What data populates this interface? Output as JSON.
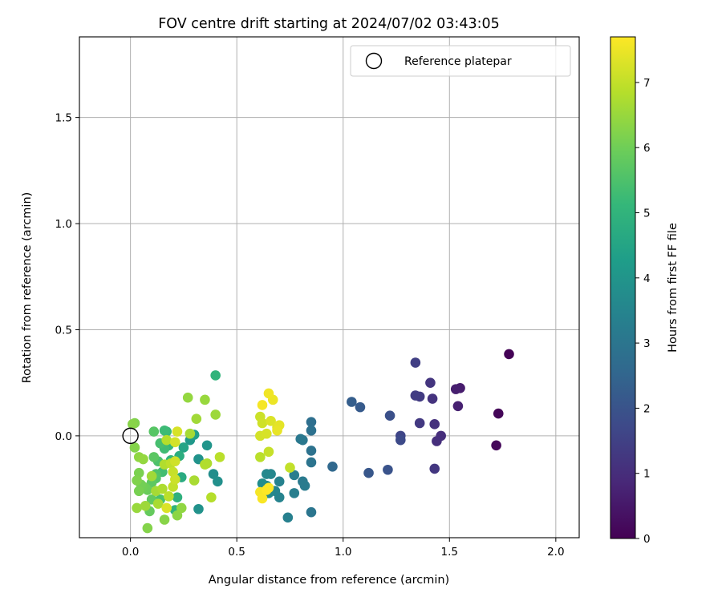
{
  "chart_data": {
    "type": "scatter",
    "title": "FOV centre drift starting at 2024/07/02 03:43:05",
    "xlabel": "Angular distance from reference (arcmin)",
    "ylabel": "Rotation from reference (arcmin)",
    "xlim": [
      -0.24,
      2.11
    ],
    "ylim": [
      -0.48,
      1.88
    ],
    "x_ticks": [
      "0.0",
      "0.5",
      "1.0",
      "1.5",
      "2.0"
    ],
    "y_ticks": [
      "0.0",
      "0.5",
      "1.0",
      "1.5"
    ],
    "grid": true,
    "legend": {
      "position": "top-right",
      "entries": [
        "Reference platepar"
      ]
    },
    "reference_point": {
      "x": 0.0,
      "y": 0.0,
      "label": "Reference platepar"
    },
    "colorbar": {
      "label": "Hours from first FF file",
      "range": [
        0,
        7.7
      ],
      "ticks": [
        "0",
        "1",
        "2",
        "3",
        "4",
        "5",
        "6",
        "7"
      ],
      "colormap": [
        "#440154",
        "#482878",
        "#3e4989",
        "#31688e",
        "#26828e",
        "#1f9e89",
        "#35b779",
        "#6ece58",
        "#b5de2b",
        "#fde725"
      ]
    },
    "points": [
      {
        "x": 1.78,
        "y": 0.385,
        "h": 0.05
      },
      {
        "x": 1.73,
        "y": 0.105,
        "h": 0.1
      },
      {
        "x": 1.72,
        "y": -0.045,
        "h": 0.15
      },
      {
        "x": 1.55,
        "y": 0.225,
        "h": 0.6
      },
      {
        "x": 1.53,
        "y": 0.22,
        "h": 0.65
      },
      {
        "x": 1.54,
        "y": 0.14,
        "h": 0.7
      },
      {
        "x": 1.46,
        "y": 0.0,
        "h": 1.0
      },
      {
        "x": 1.44,
        "y": -0.025,
        "h": 1.05
      },
      {
        "x": 1.43,
        "y": 0.055,
        "h": 1.1
      },
      {
        "x": 1.42,
        "y": 0.175,
        "h": 1.15
      },
      {
        "x": 1.41,
        "y": 0.25,
        "h": 1.2
      },
      {
        "x": 1.43,
        "y": -0.155,
        "h": 1.25
      },
      {
        "x": 1.36,
        "y": 0.06,
        "h": 1.3
      },
      {
        "x": 1.36,
        "y": 0.185,
        "h": 1.35
      },
      {
        "x": 1.34,
        "y": 0.19,
        "h": 1.4
      },
      {
        "x": 1.34,
        "y": 0.345,
        "h": 1.45
      },
      {
        "x": 1.27,
        "y": 0.0,
        "h": 1.6
      },
      {
        "x": 1.27,
        "y": -0.02,
        "h": 1.75
      },
      {
        "x": 1.22,
        "y": 0.095,
        "h": 1.9
      },
      {
        "x": 1.21,
        "y": -0.16,
        "h": 2.0
      },
      {
        "x": 1.12,
        "y": -0.175,
        "h": 2.1
      },
      {
        "x": 1.08,
        "y": 0.135,
        "h": 2.2
      },
      {
        "x": 1.04,
        "y": 0.16,
        "h": 2.3
      },
      {
        "x": 0.95,
        "y": -0.145,
        "h": 2.6
      },
      {
        "x": 0.85,
        "y": 0.065,
        "h": 2.8
      },
      {
        "x": 0.85,
        "y": 0.025,
        "h": 2.85
      },
      {
        "x": 0.85,
        "y": -0.07,
        "h": 2.9
      },
      {
        "x": 0.85,
        "y": -0.125,
        "h": 2.95
      },
      {
        "x": 0.85,
        "y": -0.36,
        "h": 3.0
      },
      {
        "x": 0.81,
        "y": -0.02,
        "h": 3.05
      },
      {
        "x": 0.8,
        "y": -0.015,
        "h": 3.1
      },
      {
        "x": 0.81,
        "y": -0.215,
        "h": 3.15
      },
      {
        "x": 0.82,
        "y": -0.235,
        "h": 3.2
      },
      {
        "x": 0.77,
        "y": -0.185,
        "h": 3.25
      },
      {
        "x": 0.77,
        "y": -0.27,
        "h": 3.3
      },
      {
        "x": 0.74,
        "y": -0.385,
        "h": 3.35
      },
      {
        "x": 0.7,
        "y": -0.215,
        "h": 3.4
      },
      {
        "x": 0.7,
        "y": -0.29,
        "h": 3.45
      },
      {
        "x": 0.68,
        "y": -0.26,
        "h": 3.5
      },
      {
        "x": 0.66,
        "y": -0.18,
        "h": 3.55
      },
      {
        "x": 0.64,
        "y": -0.18,
        "h": 3.6
      },
      {
        "x": 0.65,
        "y": -0.27,
        "h": 3.65
      },
      {
        "x": 0.64,
        "y": -0.235,
        "h": 3.7
      },
      {
        "x": 0.62,
        "y": -0.225,
        "h": 3.75
      },
      {
        "x": 0.4,
        "y": 0.285,
        "h": 5.0
      },
      {
        "x": 0.39,
        "y": -0.18,
        "h": 3.8
      },
      {
        "x": 0.41,
        "y": -0.215,
        "h": 3.85
      },
      {
        "x": 0.32,
        "y": -0.345,
        "h": 3.9
      },
      {
        "x": 0.32,
        "y": -0.11,
        "h": 3.95
      },
      {
        "x": 0.36,
        "y": -0.045,
        "h": 4.0
      },
      {
        "x": 0.28,
        "y": -0.02,
        "h": 4.1
      },
      {
        "x": 0.3,
        "y": 0.005,
        "h": 4.3
      },
      {
        "x": 0.25,
        "y": -0.055,
        "h": 4.5
      },
      {
        "x": 0.24,
        "y": -0.195,
        "h": 4.7
      },
      {
        "x": 0.23,
        "y": -0.095,
        "h": 4.8
      },
      {
        "x": 0.22,
        "y": -0.29,
        "h": 4.9
      },
      {
        "x": 0.21,
        "y": -0.35,
        "h": 5.0
      },
      {
        "x": 0.19,
        "y": -0.115,
        "h": 5.05
      },
      {
        "x": 0.18,
        "y": -0.045,
        "h": 5.1
      },
      {
        "x": 0.17,
        "y": 0.02,
        "h": 5.2
      },
      {
        "x": 0.16,
        "y": 0.025,
        "h": 5.25
      },
      {
        "x": 0.16,
        "y": -0.06,
        "h": 5.3
      },
      {
        "x": 0.15,
        "y": -0.17,
        "h": 5.35
      },
      {
        "x": 0.14,
        "y": -0.035,
        "h": 5.4
      },
      {
        "x": 0.14,
        "y": -0.3,
        "h": 5.45
      },
      {
        "x": 0.13,
        "y": -0.12,
        "h": 5.5
      },
      {
        "x": 0.12,
        "y": -0.18,
        "h": 5.55
      },
      {
        "x": 0.12,
        "y": -0.2,
        "h": 5.6
      },
      {
        "x": 0.11,
        "y": 0.02,
        "h": 5.65
      },
      {
        "x": 0.11,
        "y": -0.1,
        "h": 5.7
      },
      {
        "x": 0.1,
        "y": -0.22,
        "h": 5.75
      },
      {
        "x": 0.1,
        "y": -0.3,
        "h": 5.8
      },
      {
        "x": 0.09,
        "y": -0.355,
        "h": 5.85
      },
      {
        "x": 0.08,
        "y": -0.255,
        "h": 5.9
      },
      {
        "x": 0.07,
        "y": -0.245,
        "h": 5.95
      },
      {
        "x": 0.06,
        "y": -0.24,
        "h": 6.0
      },
      {
        "x": 0.05,
        "y": -0.23,
        "h": 6.05
      },
      {
        "x": 0.04,
        "y": -0.26,
        "h": 6.1
      },
      {
        "x": 0.04,
        "y": -0.175,
        "h": 6.15
      },
      {
        "x": 0.03,
        "y": -0.21,
        "h": 6.2
      },
      {
        "x": 0.08,
        "y": -0.435,
        "h": 6.25
      },
      {
        "x": 0.16,
        "y": -0.395,
        "h": 6.3
      },
      {
        "x": 0.22,
        "y": -0.375,
        "h": 6.35
      },
      {
        "x": 0.24,
        "y": -0.34,
        "h": 6.4
      },
      {
        "x": 0.27,
        "y": 0.18,
        "h": 6.45
      },
      {
        "x": 0.35,
        "y": 0.17,
        "h": 6.5
      },
      {
        "x": 0.4,
        "y": 0.1,
        "h": 6.55
      },
      {
        "x": 0.31,
        "y": 0.08,
        "h": 6.6
      },
      {
        "x": 0.28,
        "y": 0.01,
        "h": 6.65
      },
      {
        "x": 0.3,
        "y": -0.21,
        "h": 6.7
      },
      {
        "x": 0.36,
        "y": -0.13,
        "h": 6.75
      },
      {
        "x": 0.35,
        "y": -0.135,
        "h": 6.8
      },
      {
        "x": 0.38,
        "y": -0.29,
        "h": 6.85
      },
      {
        "x": 0.42,
        "y": -0.1,
        "h": 6.9
      },
      {
        "x": 0.02,
        "y": 0.06,
        "h": 6.2
      },
      {
        "x": 0.01,
        "y": 0.055,
        "h": 6.3
      },
      {
        "x": 0.02,
        "y": -0.055,
        "h": 6.25
      },
      {
        "x": 0.04,
        "y": -0.1,
        "h": 6.4
      },
      {
        "x": 0.06,
        "y": -0.11,
        "h": 6.45
      },
      {
        "x": 0.03,
        "y": -0.34,
        "h": 6.5
      },
      {
        "x": 0.07,
        "y": -0.33,
        "h": 6.55
      },
      {
        "x": 0.1,
        "y": -0.19,
        "h": 6.6
      },
      {
        "x": 0.12,
        "y": -0.26,
        "h": 6.65
      },
      {
        "x": 0.13,
        "y": -0.32,
        "h": 6.7
      },
      {
        "x": 0.15,
        "y": -0.25,
        "h": 6.75
      },
      {
        "x": 0.16,
        "y": -0.135,
        "h": 6.8
      },
      {
        "x": 0.17,
        "y": -0.02,
        "h": 6.85
      },
      {
        "x": 0.18,
        "y": -0.285,
        "h": 6.9
      },
      {
        "x": 0.19,
        "y": -0.13,
        "h": 6.95
      },
      {
        "x": 0.2,
        "y": -0.24,
        "h": 7.0
      },
      {
        "x": 0.2,
        "y": -0.17,
        "h": 7.05
      },
      {
        "x": 0.21,
        "y": -0.205,
        "h": 7.1
      },
      {
        "x": 0.21,
        "y": -0.12,
        "h": 7.15
      },
      {
        "x": 0.21,
        "y": -0.03,
        "h": 7.2
      },
      {
        "x": 0.22,
        "y": 0.02,
        "h": 7.25
      },
      {
        "x": 0.17,
        "y": -0.34,
        "h": 7.3
      },
      {
        "x": 0.61,
        "y": -0.1,
        "h": 6.9
      },
      {
        "x": 0.75,
        "y": -0.15,
        "h": 7.0
      },
      {
        "x": 0.65,
        "y": -0.075,
        "h": 7.05
      },
      {
        "x": 0.61,
        "y": 0.09,
        "h": 7.1
      },
      {
        "x": 0.62,
        "y": 0.06,
        "h": 7.15
      },
      {
        "x": 0.61,
        "y": 0.0,
        "h": 7.2
      },
      {
        "x": 0.64,
        "y": 0.01,
        "h": 7.25
      },
      {
        "x": 0.66,
        "y": 0.07,
        "h": 7.3
      },
      {
        "x": 0.69,
        "y": 0.04,
        "h": 7.35
      },
      {
        "x": 0.7,
        "y": 0.05,
        "h": 7.4
      },
      {
        "x": 0.69,
        "y": 0.025,
        "h": 7.45
      },
      {
        "x": 0.67,
        "y": 0.17,
        "h": 7.5
      },
      {
        "x": 0.65,
        "y": 0.2,
        "h": 7.55
      },
      {
        "x": 0.62,
        "y": 0.145,
        "h": 7.6
      },
      {
        "x": 0.61,
        "y": -0.265,
        "h": 7.6
      },
      {
        "x": 0.62,
        "y": -0.295,
        "h": 7.65
      },
      {
        "x": 0.64,
        "y": -0.255,
        "h": 7.7
      },
      {
        "x": 0.65,
        "y": -0.245,
        "h": 7.7
      }
    ]
  }
}
